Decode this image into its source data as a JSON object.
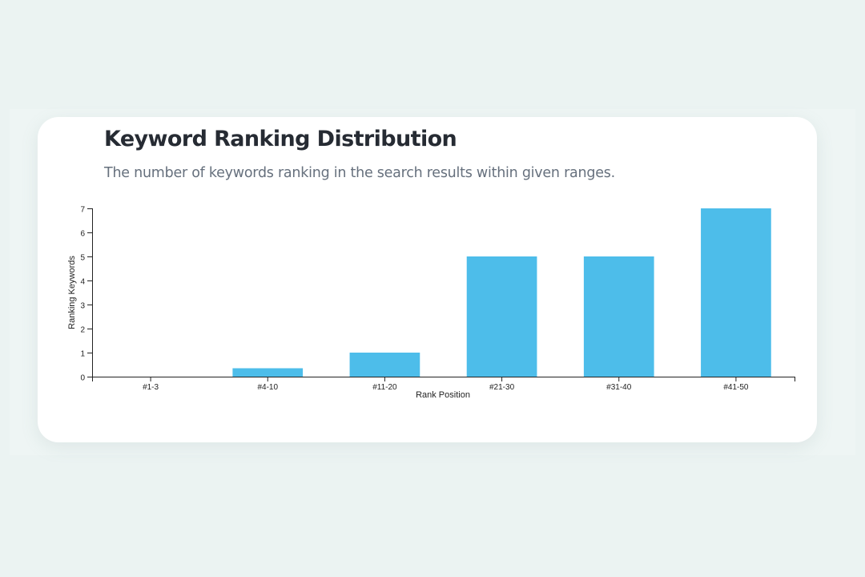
{
  "page": {
    "title": "Keyword Ranking Distribution",
    "subtitle": "The number of keywords ranking in the search results within given ranges."
  },
  "colors": {
    "bar": "#4dbdea",
    "axis": "#222222",
    "card": "#ffffff",
    "background": "#ebf3f2"
  },
  "chart_data": {
    "type": "bar",
    "title": "Keyword Ranking Distribution",
    "subtitle": "The number of keywords ranking in the search results within given ranges.",
    "categories": [
      "#1-3",
      "#4-10",
      "#11-20",
      "#21-30",
      "#31-40",
      "#41-50"
    ],
    "values": [
      0,
      0.35,
      1,
      5,
      5,
      7
    ],
    "xlabel": "Rank Position",
    "ylabel": "Ranking Keywords",
    "ylim": [
      0,
      7
    ],
    "yticks": [
      "0",
      "1",
      "2",
      "3",
      "4",
      "5",
      "6",
      "7"
    ],
    "grid": false,
    "legend": "none"
  }
}
